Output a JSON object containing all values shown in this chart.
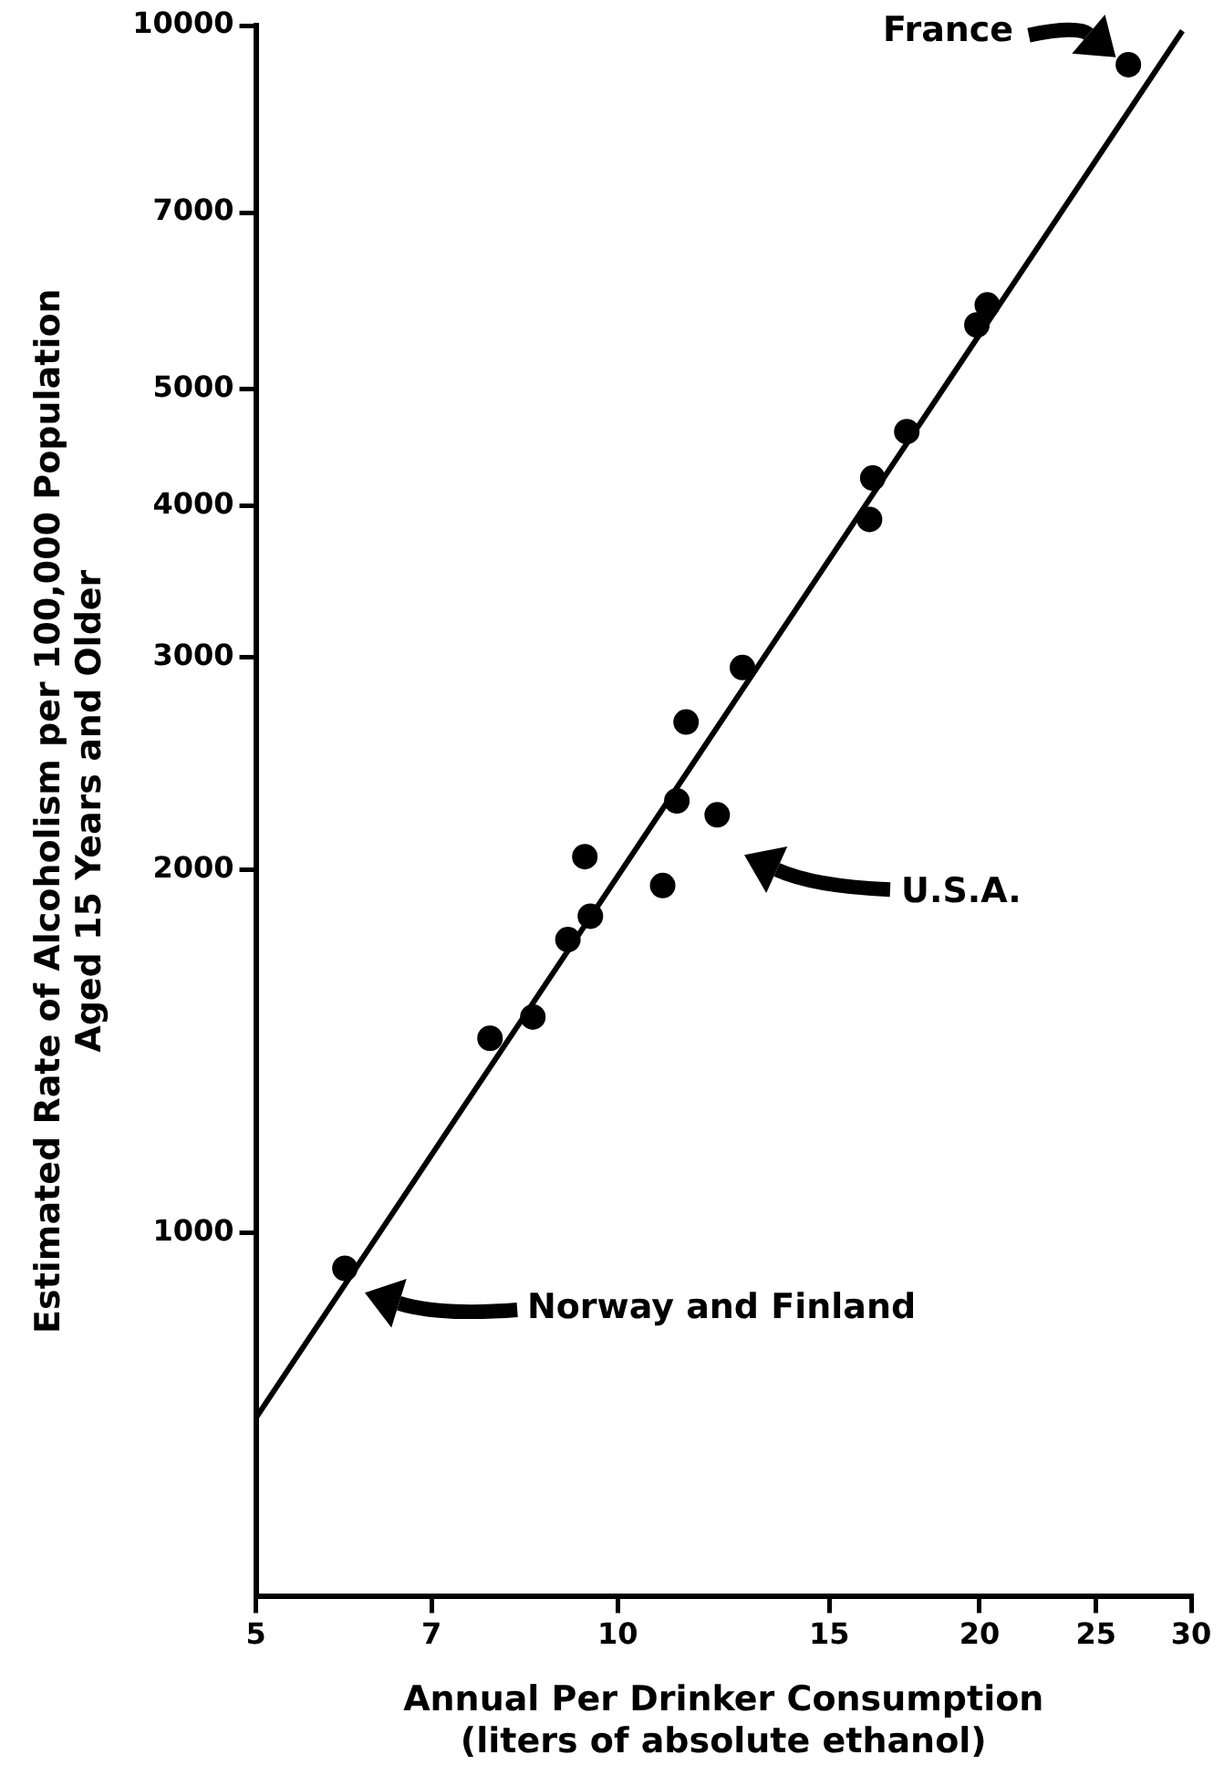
{
  "chart_data": {
    "type": "scatter",
    "xlabel": "Annual Per Drinker Consumption\n(liters of absolute ethanol)",
    "ylabel": "Estimated Rate of Alcoholism per 100,000 Population\nAged 15 Years and Older",
    "log": "xy",
    "xlim": [
      5,
      30
    ],
    "xticks": [
      5,
      7,
      10,
      15,
      20,
      25,
      30
    ],
    "ylim": [
      500,
      10000
    ],
    "yticks": [
      1000,
      2000,
      3000,
      4000,
      5000,
      7000,
      10000
    ],
    "legend": false,
    "series": [
      {
        "marker": "circle",
        "color": "#000000",
        "x": [
          26.6,
          20.3,
          19.9,
          17.4,
          16.3,
          16.2,
          12.7,
          11.4,
          11.2,
          12.1,
          9.39,
          10.9,
          9.49,
          9.09,
          8.5,
          7.83,
          5.93
        ],
        "values": [
          9280,
          5870,
          5650,
          4610,
          4220,
          3900,
          2940,
          2650,
          2280,
          2220,
          2050,
          1940,
          1830,
          1750,
          1510,
          1450,
          935
        ]
      },
      {
        "type": "line",
        "color": "#000000",
        "x": [
          5,
          29.5
        ],
        "values": [
          703,
          9900
        ]
      }
    ],
    "annotations": [
      "France",
      "U.S.A.",
      "Norway and Finland"
    ]
  }
}
